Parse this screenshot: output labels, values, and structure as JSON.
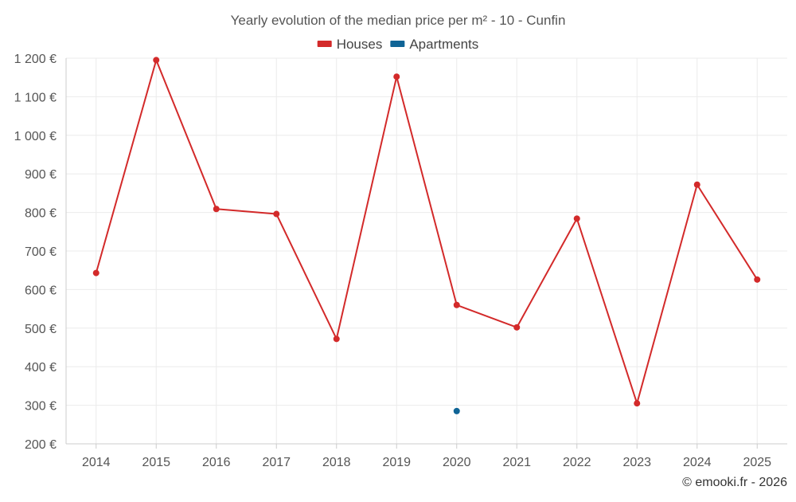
{
  "chart_data": {
    "type": "line",
    "title": "Yearly evolution of the median price per m² - 10 - Cunfin",
    "xlabel": "",
    "ylabel": "",
    "categories": [
      "2014",
      "2015",
      "2016",
      "2017",
      "2018",
      "2019",
      "2020",
      "2021",
      "2022",
      "2023",
      "2024",
      "2025"
    ],
    "ylim": [
      200,
      1200
    ],
    "yticks": [
      200,
      300,
      400,
      500,
      600,
      700,
      800,
      900,
      1000,
      1100,
      1200
    ],
    "ytick_labels": [
      "200 €",
      "300 €",
      "400 €",
      "500 €",
      "600 €",
      "700 €",
      "800 €",
      "900 €",
      "1 000 €",
      "1 100 €",
      "1 200 €"
    ],
    "grid": true,
    "legend_position": "top-center",
    "series": [
      {
        "name": "Houses",
        "color": "#d32a2a",
        "values": [
          643,
          1195,
          809,
          796,
          472,
          1152,
          560,
          502,
          784,
          305,
          872,
          626
        ]
      },
      {
        "name": "Apartments",
        "color": "#0f6496",
        "values": [
          null,
          null,
          null,
          null,
          null,
          null,
          285,
          null,
          null,
          null,
          null,
          null
        ]
      }
    ]
  },
  "credit": "© emooki.fr - 2026"
}
